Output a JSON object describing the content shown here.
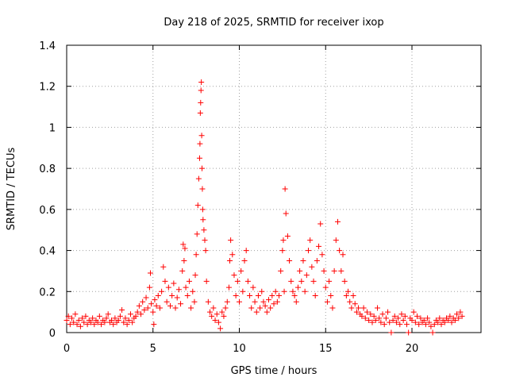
{
  "chart_data": {
    "type": "scatter",
    "title": "Day 218 of 2025, SRMTID for receiver ixop",
    "xlabel": "GPS time / hours",
    "ylabel": "SRMTID / TECUs",
    "xlim": [
      0,
      24
    ],
    "ylim": [
      0,
      1.4
    ],
    "xticks": [
      0,
      5,
      10,
      15,
      20
    ],
    "xtick_labels": [
      "0",
      "5",
      "10",
      "15",
      "20"
    ],
    "yticks": [
      0,
      0.2,
      0.4,
      0.6,
      0.8,
      1.0,
      1.2,
      1.4
    ],
    "ytick_labels": [
      "0",
      "0.2",
      "0.4",
      "0.6",
      "0.8",
      "1",
      "1.2",
      "1.4"
    ],
    "grid": true,
    "marker": "+",
    "series": [
      {
        "name": "SRMTID",
        "color": "#ff0000",
        "points": [
          [
            0.0,
            0.06
          ],
          [
            0.1,
            0.08
          ],
          [
            0.2,
            0.04
          ],
          [
            0.3,
            0.07
          ],
          [
            0.4,
            0.05
          ],
          [
            0.5,
            0.09
          ],
          [
            0.6,
            0.04
          ],
          [
            0.7,
            0.06
          ],
          [
            0.8,
            0.03
          ],
          [
            0.9,
            0.07
          ],
          [
            1.0,
            0.05
          ],
          [
            1.1,
            0.08
          ],
          [
            1.2,
            0.04
          ],
          [
            1.3,
            0.06
          ],
          [
            1.4,
            0.05
          ],
          [
            1.5,
            0.07
          ],
          [
            1.6,
            0.04
          ],
          [
            1.7,
            0.06
          ],
          [
            1.8,
            0.05
          ],
          [
            1.9,
            0.08
          ],
          [
            2.0,
            0.04
          ],
          [
            2.1,
            0.06
          ],
          [
            2.2,
            0.05
          ],
          [
            2.3,
            0.07
          ],
          [
            2.4,
            0.09
          ],
          [
            2.5,
            0.05
          ],
          [
            2.6,
            0.06
          ],
          [
            2.7,
            0.04
          ],
          [
            2.8,
            0.07
          ],
          [
            2.9,
            0.05
          ],
          [
            3.0,
            0.06
          ],
          [
            3.1,
            0.08
          ],
          [
            3.2,
            0.11
          ],
          [
            3.3,
            0.05
          ],
          [
            3.4,
            0.07
          ],
          [
            3.5,
            0.04
          ],
          [
            3.6,
            0.06
          ],
          [
            3.7,
            0.09
          ],
          [
            3.8,
            0.05
          ],
          [
            3.9,
            0.07
          ],
          [
            4.0,
            0.08
          ],
          [
            4.1,
            0.1
          ],
          [
            4.2,
            0.13
          ],
          [
            4.3,
            0.09
          ],
          [
            4.4,
            0.15
          ],
          [
            4.5,
            0.11
          ],
          [
            4.6,
            0.17
          ],
          [
            4.7,
            0.12
          ],
          [
            4.8,
            0.22
          ],
          [
            4.85,
            0.29
          ],
          [
            4.9,
            0.14
          ],
          [
            5.0,
            0.1
          ],
          [
            5.05,
            0.04
          ],
          [
            5.1,
            0.16
          ],
          [
            5.2,
            0.13
          ],
          [
            5.3,
            0.18
          ],
          [
            5.4,
            0.12
          ],
          [
            5.5,
            0.2
          ],
          [
            5.6,
            0.32
          ],
          [
            5.7,
            0.25
          ],
          [
            5.8,
            0.15
          ],
          [
            5.9,
            0.22
          ],
          [
            6.0,
            0.13
          ],
          [
            6.1,
            0.18
          ],
          [
            6.2,
            0.24
          ],
          [
            6.3,
            0.12
          ],
          [
            6.4,
            0.17
          ],
          [
            6.5,
            0.21
          ],
          [
            6.6,
            0.14
          ],
          [
            6.7,
            0.3
          ],
          [
            6.75,
            0.43
          ],
          [
            6.8,
            0.35
          ],
          [
            6.85,
            0.41
          ],
          [
            6.9,
            0.22
          ],
          [
            7.0,
            0.18
          ],
          [
            7.1,
            0.25
          ],
          [
            7.2,
            0.12
          ],
          [
            7.3,
            0.2
          ],
          [
            7.4,
            0.15
          ],
          [
            7.45,
            0.28
          ],
          [
            7.5,
            0.38
          ],
          [
            7.55,
            0.48
          ],
          [
            7.6,
            0.62
          ],
          [
            7.65,
            0.75
          ],
          [
            7.7,
            0.85
          ],
          [
            7.72,
            0.92
          ],
          [
            7.74,
            1.07
          ],
          [
            7.76,
            1.12
          ],
          [
            7.78,
            1.18
          ],
          [
            7.8,
            1.22
          ],
          [
            7.82,
            0.96
          ],
          [
            7.84,
            0.8
          ],
          [
            7.86,
            0.7
          ],
          [
            7.88,
            0.6
          ],
          [
            7.9,
            0.55
          ],
          [
            7.95,
            0.5
          ],
          [
            8.0,
            0.45
          ],
          [
            8.05,
            0.4
          ],
          [
            8.1,
            0.25
          ],
          [
            8.2,
            0.15
          ],
          [
            8.3,
            0.1
          ],
          [
            8.4,
            0.08
          ],
          [
            8.5,
            0.12
          ],
          [
            8.6,
            0.06
          ],
          [
            8.7,
            0.09
          ],
          [
            8.8,
            0.05
          ],
          [
            8.9,
            0.02
          ],
          [
            9.0,
            0.1
          ],
          [
            9.1,
            0.08
          ],
          [
            9.2,
            0.12
          ],
          [
            9.3,
            0.15
          ],
          [
            9.4,
            0.22
          ],
          [
            9.45,
            0.35
          ],
          [
            9.5,
            0.45
          ],
          [
            9.6,
            0.38
          ],
          [
            9.7,
            0.28
          ],
          [
            9.8,
            0.18
          ],
          [
            9.9,
            0.25
          ],
          [
            10.0,
            0.15
          ],
          [
            10.1,
            0.3
          ],
          [
            10.2,
            0.2
          ],
          [
            10.3,
            0.35
          ],
          [
            10.4,
            0.4
          ],
          [
            10.5,
            0.25
          ],
          [
            10.6,
            0.18
          ],
          [
            10.7,
            0.12
          ],
          [
            10.8,
            0.22
          ],
          [
            10.9,
            0.15
          ],
          [
            11.0,
            0.1
          ],
          [
            11.1,
            0.18
          ],
          [
            11.2,
            0.12
          ],
          [
            11.3,
            0.2
          ],
          [
            11.4,
            0.15
          ],
          [
            11.5,
            0.13
          ],
          [
            11.6,
            0.1
          ],
          [
            11.7,
            0.16
          ],
          [
            11.8,
            0.12
          ],
          [
            11.9,
            0.18
          ],
          [
            12.0,
            0.14
          ],
          [
            12.1,
            0.2
          ],
          [
            12.2,
            0.15
          ],
          [
            12.3,
            0.18
          ],
          [
            12.4,
            0.3
          ],
          [
            12.5,
            0.4
          ],
          [
            12.55,
            0.45
          ],
          [
            12.6,
            0.2
          ],
          [
            12.65,
            0.7
          ],
          [
            12.7,
            0.58
          ],
          [
            12.8,
            0.47
          ],
          [
            12.9,
            0.35
          ],
          [
            13.0,
            0.25
          ],
          [
            13.1,
            0.2
          ],
          [
            13.2,
            0.18
          ],
          [
            13.3,
            0.15
          ],
          [
            13.4,
            0.22
          ],
          [
            13.5,
            0.3
          ],
          [
            13.6,
            0.25
          ],
          [
            13.7,
            0.35
          ],
          [
            13.8,
            0.2
          ],
          [
            13.9,
            0.28
          ],
          [
            14.0,
            0.4
          ],
          [
            14.1,
            0.45
          ],
          [
            14.2,
            0.32
          ],
          [
            14.3,
            0.25
          ],
          [
            14.4,
            0.18
          ],
          [
            14.5,
            0.35
          ],
          [
            14.6,
            0.42
          ],
          [
            14.7,
            0.53
          ],
          [
            14.8,
            0.38
          ],
          [
            14.9,
            0.3
          ],
          [
            15.0,
            0.22
          ],
          [
            15.1,
            0.15
          ],
          [
            15.2,
            0.25
          ],
          [
            15.3,
            0.18
          ],
          [
            15.4,
            0.12
          ],
          [
            15.5,
            0.3
          ],
          [
            15.6,
            0.45
          ],
          [
            15.7,
            0.54
          ],
          [
            15.8,
            0.4
          ],
          [
            15.9,
            0.3
          ],
          [
            16.0,
            0.38
          ],
          [
            16.1,
            0.25
          ],
          [
            16.2,
            0.18
          ],
          [
            16.3,
            0.2
          ],
          [
            16.4,
            0.15
          ],
          [
            16.5,
            0.12
          ],
          [
            16.6,
            0.18
          ],
          [
            16.7,
            0.14
          ],
          [
            16.8,
            0.1
          ],
          [
            16.9,
            0.12
          ],
          [
            17.0,
            0.09
          ],
          [
            17.1,
            0.08
          ],
          [
            17.2,
            0.12
          ],
          [
            17.3,
            0.07
          ],
          [
            17.4,
            0.1
          ],
          [
            17.5,
            0.06
          ],
          [
            17.6,
            0.09
          ],
          [
            17.7,
            0.05
          ],
          [
            17.8,
            0.08
          ],
          [
            17.9,
            0.06
          ],
          [
            18.0,
            0.12
          ],
          [
            18.1,
            0.07
          ],
          [
            18.2,
            0.05
          ],
          [
            18.3,
            0.09
          ],
          [
            18.4,
            0.04
          ],
          [
            18.5,
            0.07
          ],
          [
            18.6,
            0.1
          ],
          [
            18.7,
            0.05
          ],
          [
            18.8,
            0.0
          ],
          [
            18.9,
            0.06
          ],
          [
            19.0,
            0.08
          ],
          [
            19.1,
            0.05
          ],
          [
            19.2,
            0.07
          ],
          [
            19.3,
            0.04
          ],
          [
            19.4,
            0.09
          ],
          [
            19.5,
            0.06
          ],
          [
            19.6,
            0.08
          ],
          [
            19.7,
            0.04
          ],
          [
            19.8,
            0.0
          ],
          [
            19.9,
            0.07
          ],
          [
            20.0,
            0.06
          ],
          [
            20.1,
            0.1
          ],
          [
            20.2,
            0.05
          ],
          [
            20.3,
            0.08
          ],
          [
            20.4,
            0.04
          ],
          [
            20.5,
            0.07
          ],
          [
            20.6,
            0.05
          ],
          [
            20.7,
            0.06
          ],
          [
            20.8,
            0.04
          ],
          [
            20.9,
            0.07
          ],
          [
            21.0,
            0.05
          ],
          [
            21.1,
            0.03
          ],
          [
            21.2,
            0.0
          ],
          [
            21.3,
            0.04
          ],
          [
            21.4,
            0.06
          ],
          [
            21.5,
            0.05
          ],
          [
            21.6,
            0.07
          ],
          [
            21.7,
            0.04
          ],
          [
            21.8,
            0.06
          ],
          [
            21.9,
            0.05
          ],
          [
            22.0,
            0.07
          ],
          [
            22.1,
            0.06
          ],
          [
            22.2,
            0.08
          ],
          [
            22.3,
            0.05
          ],
          [
            22.4,
            0.07
          ],
          [
            22.5,
            0.06
          ],
          [
            22.6,
            0.09
          ],
          [
            22.7,
            0.07
          ],
          [
            22.8,
            0.1
          ],
          [
            22.9,
            0.08
          ]
        ]
      }
    ]
  }
}
